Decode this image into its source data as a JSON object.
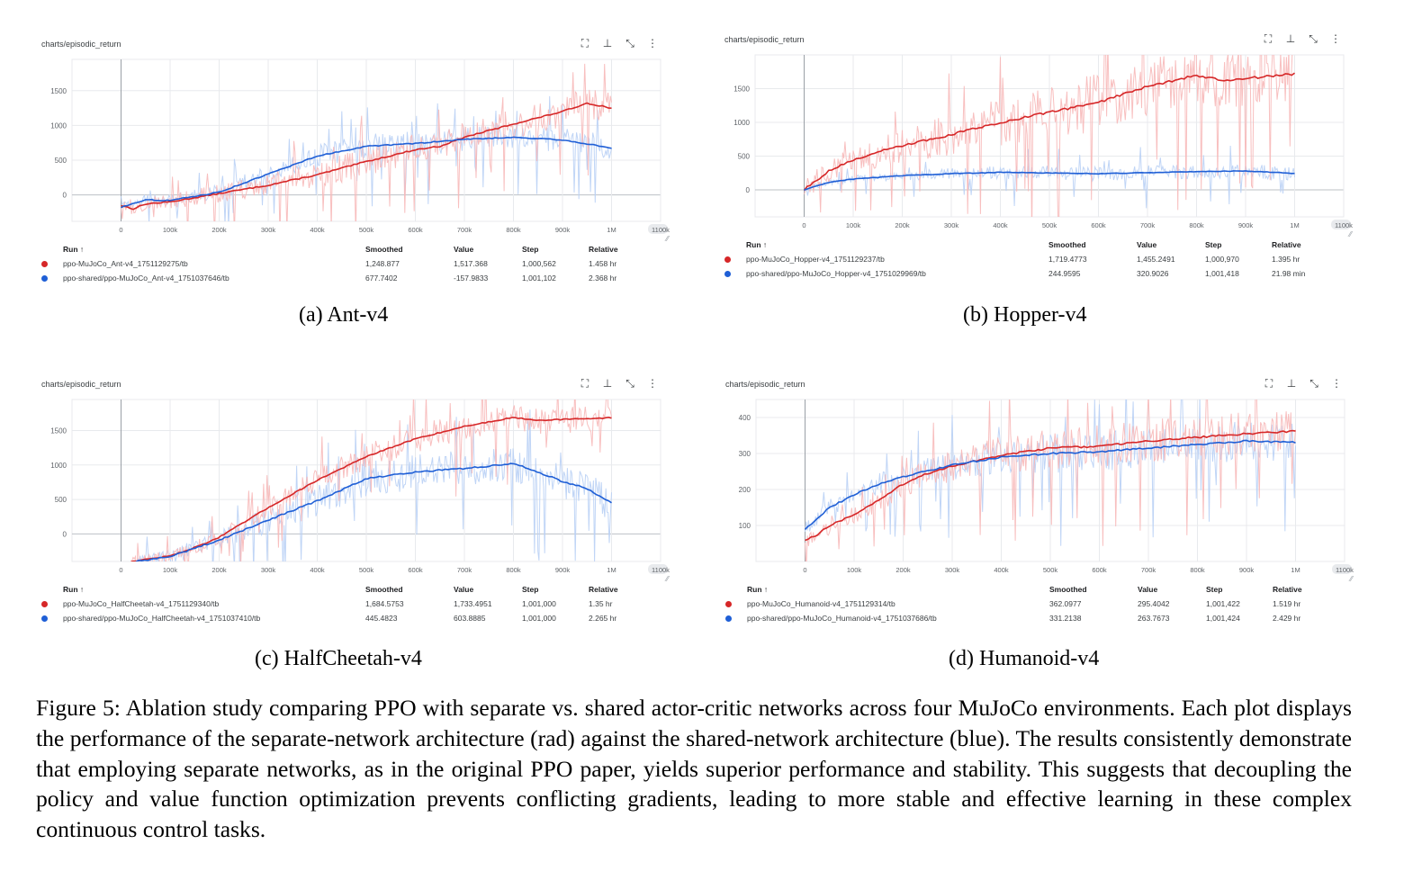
{
  "figure": {
    "caption": "Figure 5: Ablation study comparing PPO with separate vs. shared actor-critic networks across four MuJoCo environments. Each plot displays the performance of the separate-network architecture (rad) against the shared-network architecture (blue). The results consistently demonstrate that employing separate networks, as in the original PPO paper, yields superior performance and stability. This suggests that decoupling the policy and value function optimization prevents conflicting gradients, leading to more stable and effective learning in these complex continuous control tasks."
  },
  "colors": {
    "red": "#d62728",
    "red_light": "#f7b8b8",
    "blue": "#1f5fd6",
    "blue_light": "#b9d0f5",
    "axis": "#9aa0a6",
    "grid": "#e8eaed"
  },
  "icons": [
    "fullscreen-icon",
    "pin-icon",
    "collapse-icon",
    "more-vert-icon"
  ],
  "legend_headers": {
    "run": "Run ↑",
    "smoothed": "Smoothed",
    "value": "Value",
    "step": "Step",
    "relative": "Relative"
  },
  "panels": [
    {
      "title": "charts/episodic_return",
      "subcaption": "(a) Ant-v4",
      "runs": [
        {
          "name": "ppo-MuJoCo_Ant-v4_1751129275/tb",
          "smoothed": "1,248.877",
          "value": "1,517.368",
          "step": "1,000,562",
          "relative": "1.458 hr"
        },
        {
          "name": "ppo-shared/ppo-MuJoCo_Ant-v4_1751037646/tb",
          "smoothed": "677.7402",
          "value": "-157.9833",
          "step": "1,001,102",
          "relative": "2.368 hr"
        }
      ]
    },
    {
      "title": "charts/episodic_return",
      "subcaption": "(b) Hopper-v4",
      "runs": [
        {
          "name": "ppo-MuJoCo_Hopper-v4_1751129237/tb",
          "smoothed": "1,719.4773",
          "value": "1,455.2491",
          "step": "1,000,970",
          "relative": "1.395 hr"
        },
        {
          "name": "ppo-shared/ppo-MuJoCo_Hopper-v4_1751029969/tb",
          "smoothed": "244.9595",
          "value": "320.9026",
          "step": "1,001,418",
          "relative": "21.98 min"
        }
      ]
    },
    {
      "title": "charts/episodic_return",
      "subcaption": "(c) HalfCheetah-v4",
      "runs": [
        {
          "name": "ppo-MuJoCo_HalfCheetah-v4_1751129340/tb",
          "smoothed": "1,684.5753",
          "value": "1,733.4951",
          "step": "1,001,000",
          "relative": "1.35 hr"
        },
        {
          "name": "ppo-shared/ppo-MuJoCo_HalfCheetah-v4_1751037410/tb",
          "smoothed": "445.4823",
          "value": "603.8885",
          "step": "1,001,000",
          "relative": "2.265 hr"
        }
      ]
    },
    {
      "title": "charts/episodic_return",
      "subcaption": "(d) Humanoid-v4",
      "runs": [
        {
          "name": "ppo-MuJoCo_Humanoid-v4_1751129314/tb",
          "smoothed": "362.0977",
          "value": "295.4042",
          "step": "1,001,422",
          "relative": "1.519 hr"
        },
        {
          "name": "ppo-shared/ppo-MuJoCo_Humanoid-v4_1751037686/tb",
          "smoothed": "331.2138",
          "value": "263.7673",
          "step": "1,001,424",
          "relative": "2.429 hr"
        }
      ]
    }
  ],
  "chart_data": [
    {
      "type": "line",
      "title": "charts/episodic_return",
      "x_ticks": [
        "0",
        "100k",
        "200k",
        "300k",
        "400k",
        "500k",
        "600k",
        "700k",
        "800k",
        "900k",
        "1M",
        "1100k"
      ],
      "xlim": [
        -100000,
        1100000
      ],
      "ylim": [
        -380,
        1950
      ],
      "y_ticks": [
        0,
        500,
        1000,
        1500
      ],
      "series": [
        {
          "name": "ppo-MuJoCo_Ant-v4_1751129275/tb",
          "color": "#d62728",
          "x": [
            0,
            25000,
            50000,
            100000,
            200000,
            300000,
            400000,
            500000,
            600000,
            650000,
            700000,
            800000,
            900000,
            950000,
            1000000
          ],
          "values": [
            -150,
            -200,
            -130,
            -100,
            20,
            140,
            290,
            480,
            650,
            700,
            830,
            1020,
            1200,
            1320,
            1249
          ],
          "noise": 220
        },
        {
          "name": "ppo-shared/ppo-MuJoCo_Ant-v4_1751037646/tb",
          "color": "#1f5fd6",
          "x": [
            0,
            25000,
            50000,
            100000,
            200000,
            300000,
            400000,
            500000,
            600000,
            700000,
            800000,
            900000,
            1000000
          ],
          "values": [
            -180,
            -120,
            -70,
            -80,
            40,
            300,
            560,
            700,
            740,
            800,
            830,
            790,
            678
          ],
          "noise": 180
        }
      ]
    },
    {
      "type": "line",
      "title": "charts/episodic_return",
      "x_ticks": [
        "0",
        "100k",
        "200k",
        "300k",
        "400k",
        "500k",
        "600k",
        "700k",
        "800k",
        "900k",
        "1M",
        "1100k"
      ],
      "xlim": [
        -100000,
        1100000
      ],
      "ylim": [
        -400,
        2000
      ],
      "y_ticks": [
        0,
        500,
        1000,
        1500
      ],
      "series": [
        {
          "name": "ppo-MuJoCo_Hopper-v4_1751129237/tb",
          "color": "#d62728",
          "x": [
            0,
            50000,
            100000,
            150000,
            200000,
            300000,
            400000,
            500000,
            600000,
            700000,
            800000,
            850000,
            900000,
            1000000
          ],
          "values": [
            0,
            280,
            440,
            560,
            650,
            820,
            1000,
            1150,
            1300,
            1530,
            1700,
            1620,
            1650,
            1719
          ],
          "noise": 420
        },
        {
          "name": "ppo-shared/ppo-MuJoCo_Hopper-v4_1751029969/tb",
          "color": "#1f5fd6",
          "x": [
            0,
            50000,
            100000,
            200000,
            300000,
            400000,
            500000,
            600000,
            700000,
            800000,
            900000,
            1000000
          ],
          "values": [
            0,
            110,
            160,
            210,
            240,
            260,
            250,
            240,
            255,
            270,
            280,
            245
          ],
          "noise": 110
        }
      ]
    },
    {
      "type": "line",
      "title": "charts/episodic_return",
      "x_ticks": [
        "0",
        "100k",
        "200k",
        "300k",
        "400k",
        "500k",
        "600k",
        "700k",
        "800k",
        "900k",
        "1M",
        "1100k"
      ],
      "xlim": [
        -100000,
        1100000
      ],
      "ylim": [
        -400,
        1950
      ],
      "y_ticks": [
        0,
        500,
        1000,
        1500
      ],
      "series": [
        {
          "name": "ppo-MuJoCo_HalfCheetah-v4_1751129340/tb",
          "color": "#d62728",
          "x": [
            20000,
            100000,
            150000,
            200000,
            300000,
            400000,
            500000,
            600000,
            700000,
            800000,
            850000,
            900000,
            1000000
          ],
          "values": [
            -400,
            -320,
            -200,
            -50,
            380,
            780,
            1120,
            1380,
            1560,
            1690,
            1650,
            1660,
            1685
          ],
          "noise": 200
        },
        {
          "name": "ppo-shared/ppo-MuJoCo_HalfCheetah-v4_1751037410/tb",
          "color": "#1f5fd6",
          "x": [
            30000,
            100000,
            200000,
            300000,
            400000,
            500000,
            600000,
            700000,
            800000,
            850000,
            900000,
            950000,
            1000000
          ],
          "values": [
            -400,
            -330,
            -90,
            200,
            480,
            800,
            900,
            950,
            1020,
            900,
            760,
            660,
            445
          ],
          "noise": 260
        }
      ]
    },
    {
      "type": "line",
      "title": "charts/episodic_return",
      "x_ticks": [
        "0",
        "100k",
        "200k",
        "300k",
        "400k",
        "500k",
        "600k",
        "700k",
        "800k",
        "900k",
        "1M",
        "1100k"
      ],
      "xlim": [
        -100000,
        1100000
      ],
      "ylim": [
        0,
        450
      ],
      "y_ticks": [
        100,
        200,
        300,
        400
      ],
      "series": [
        {
          "name": "ppo-MuJoCo_Humanoid-v4_1751129314/tb",
          "color": "#d62728",
          "x": [
            0,
            25000,
            50000,
            100000,
            150000,
            200000,
            250000,
            300000,
            400000,
            500000,
            600000,
            700000,
            800000,
            900000,
            1000000
          ],
          "values": [
            60,
            75,
            100,
            130,
            170,
            215,
            245,
            265,
            295,
            315,
            320,
            335,
            345,
            355,
            362
          ],
          "noise": 60
        },
        {
          "name": "ppo-shared/ppo-MuJoCo_Humanoid-v4_1751037686/tb",
          "color": "#1f5fd6",
          "x": [
            0,
            25000,
            50000,
            100000,
            150000,
            200000,
            300000,
            400000,
            500000,
            600000,
            700000,
            800000,
            900000,
            1000000
          ],
          "values": [
            90,
            120,
            150,
            185,
            215,
            235,
            268,
            290,
            300,
            305,
            315,
            325,
            335,
            331
          ],
          "noise": 55
        }
      ]
    }
  ]
}
